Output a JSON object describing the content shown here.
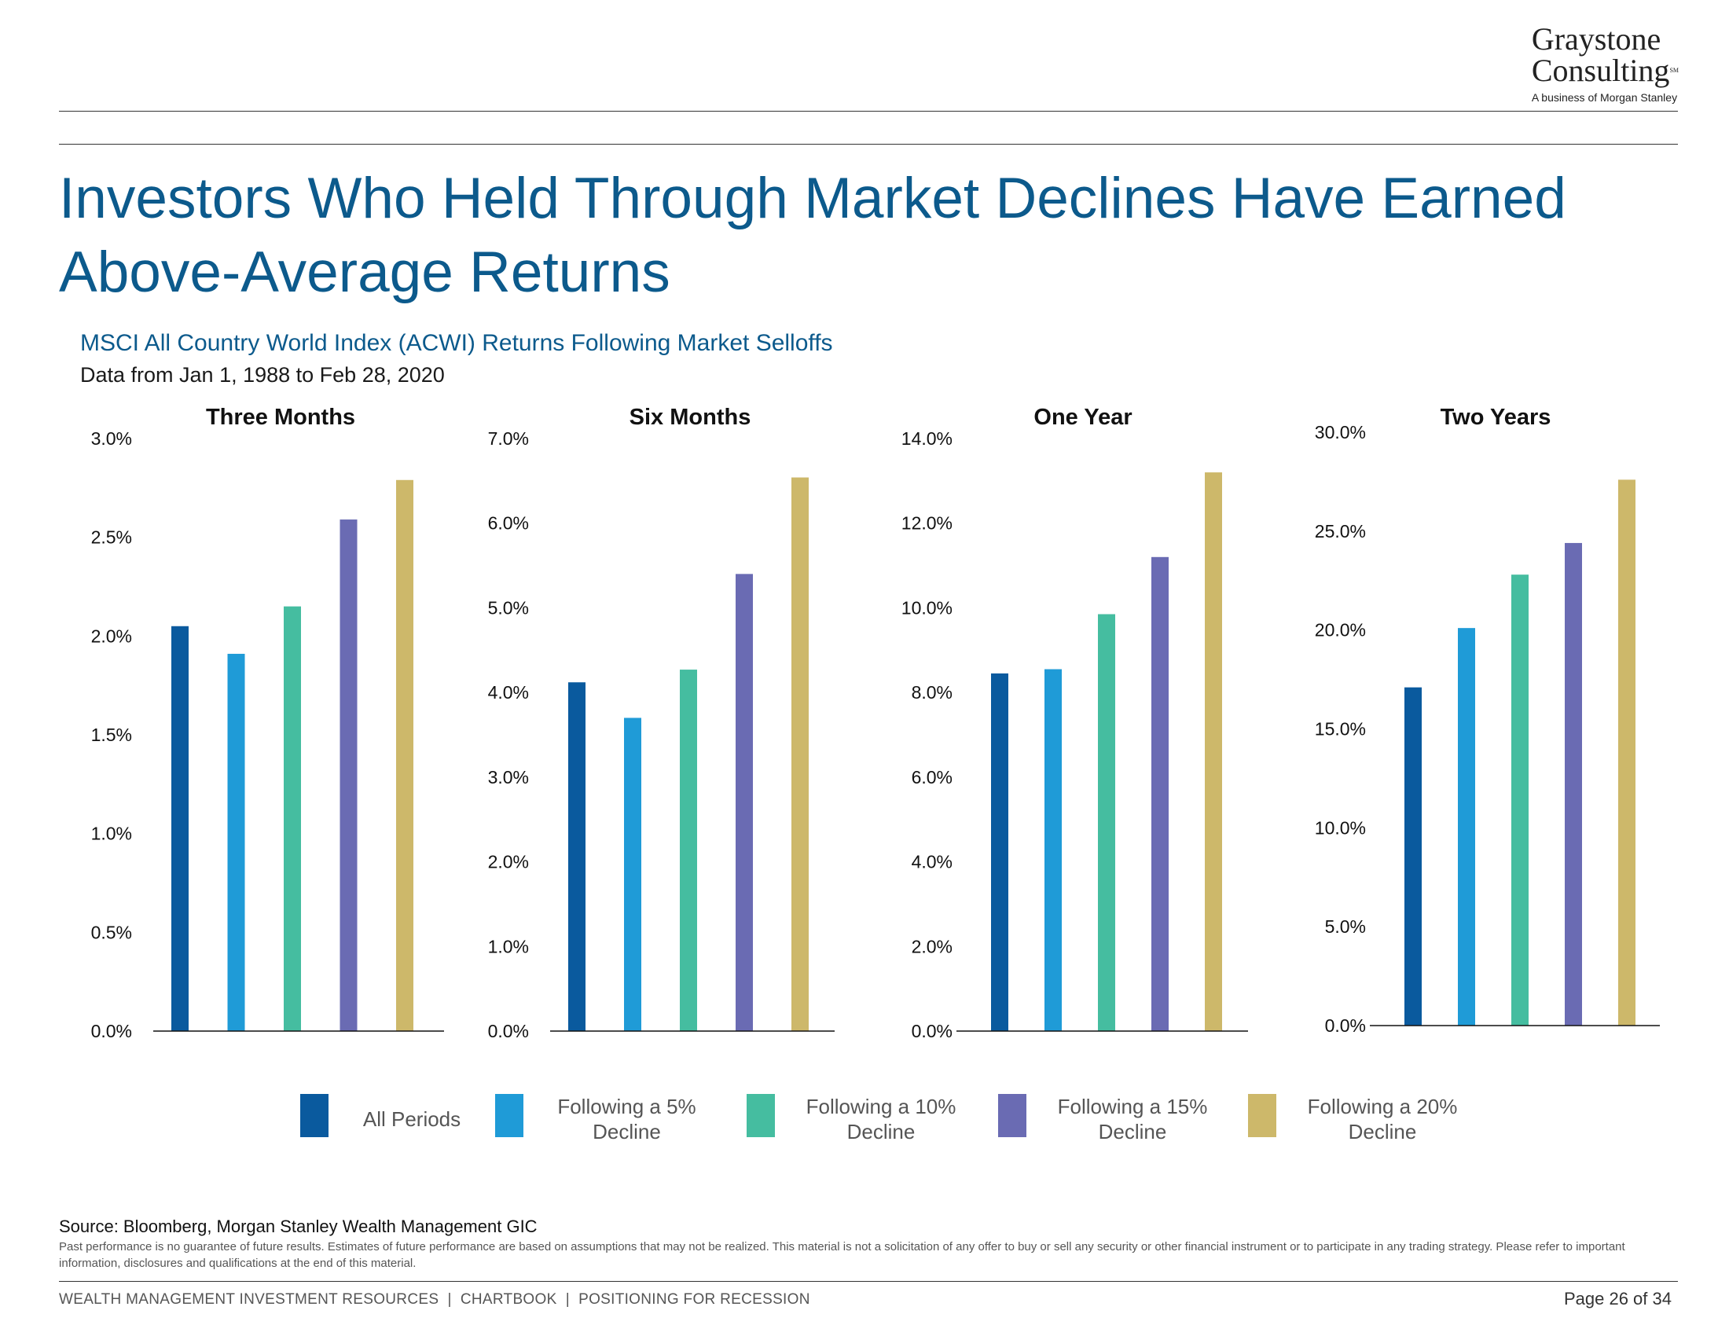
{
  "logo": {
    "line1": "Graystone",
    "line2": "Consulting",
    "mark": "SM",
    "subline": "A business of Morgan Stanley"
  },
  "title": "Investors Who Held Through Market Declines Have Earned Above-Average Returns",
  "subtitle": "MSCI All Country World Index (ACWI) Returns Following Market Selloffs",
  "date_range": "Data from Jan 1, 1988 to Feb 28, 2020",
  "colors": {
    "title": "#0c5a8c",
    "all_periods": "#0a5a9e",
    "decline_5": "#1f9bd7",
    "decline_10": "#45bda0",
    "decline_15": "#6a6bb3",
    "decline_20": "#cdb86a"
  },
  "chart_data": [
    {
      "type": "bar",
      "title": "Three Months",
      "categories": [
        "All Periods",
        "Following a 5% Decline",
        "Following a 10% Decline",
        "Following a 15% Decline",
        "Following a 20% Decline"
      ],
      "values": [
        2.05,
        1.91,
        2.15,
        2.59,
        2.79
      ],
      "ylim": [
        0,
        3.0
      ],
      "yticks": [
        "0.0%",
        "0.5%",
        "1.0%",
        "1.5%",
        "2.0%",
        "2.5%",
        "3.0%"
      ],
      "grid": false
    },
    {
      "type": "bar",
      "title": "Six Months",
      "categories": [
        "All Periods",
        "Following a 5% Decline",
        "Following a 10% Decline",
        "Following a 15% Decline",
        "Following a 20% Decline"
      ],
      "values": [
        4.12,
        3.7,
        4.27,
        5.4,
        6.54
      ],
      "ylim": [
        0,
        7.0
      ],
      "yticks": [
        "0.0%",
        "1.0%",
        "2.0%",
        "3.0%",
        "4.0%",
        "5.0%",
        "6.0%",
        "7.0%"
      ],
      "grid": false
    },
    {
      "type": "bar",
      "title": "One Year",
      "categories": [
        "All Periods",
        "Following a 5% Decline",
        "Following a 10% Decline",
        "Following a 15% Decline",
        "Following a 20% Decline"
      ],
      "values": [
        8.45,
        8.55,
        9.85,
        11.2,
        13.2
      ],
      "ylim": [
        0,
        14.0
      ],
      "yticks": [
        "0.0%",
        "2.0%",
        "4.0%",
        "6.0%",
        "8.0%",
        "10.0%",
        "12.0%",
        "14.0%"
      ],
      "grid": false
    },
    {
      "type": "bar",
      "title": "Two Years",
      "categories": [
        "All Periods",
        "Following a 5% Decline",
        "Following a 10% Decline",
        "Following a 15% Decline",
        "Following a 20% Decline"
      ],
      "values": [
        17.1,
        20.1,
        22.8,
        24.4,
        27.6
      ],
      "ylim": [
        0,
        30.0
      ],
      "yticks": [
        "0.0%",
        "5.0%",
        "10.0%",
        "15.0%",
        "20.0%",
        "25.0%",
        "30.0%"
      ],
      "grid": false
    }
  ],
  "legend": [
    {
      "label": "All Periods",
      "color": "#0a5a9e"
    },
    {
      "label": "Following a 5%\nDecline",
      "color": "#1f9bd7"
    },
    {
      "label": "Following a 10%\nDecline",
      "color": "#45bda0"
    },
    {
      "label": "Following a 15%\nDecline",
      "color": "#6a6bb3"
    },
    {
      "label": "Following a 20%\nDecline",
      "color": "#cdb86a"
    }
  ],
  "source": "Source: Bloomberg, Morgan Stanley Wealth Management GIC",
  "disclaimer": "Past performance is no guarantee of future results. Estimates of future performance are based on assumptions that may not be realized. This material is not a solicitation of any offer to buy or sell any security or other financial instrument or to participate in any trading strategy. Please refer to important information, disclosures and qualifications at the end of this material.",
  "footer": {
    "left": "WEALTH MANAGEMENT INVESTMENT RESOURCES  |  CHARTBOOK  |  POSITIONING FOR RECESSION",
    "page": "Page 26 of 34"
  }
}
